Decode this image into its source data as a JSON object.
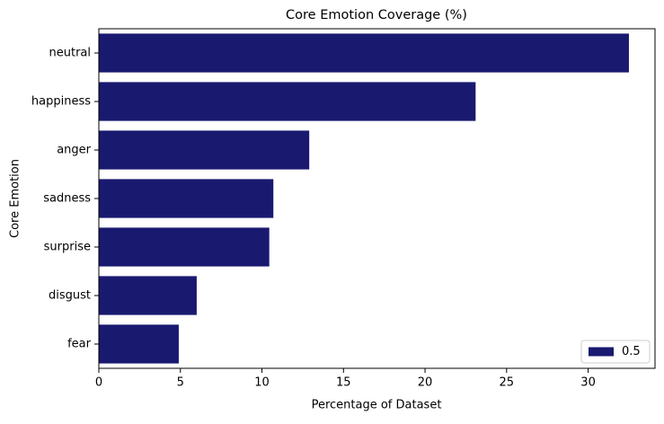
{
  "chart_data": {
    "type": "bar",
    "orientation": "horizontal",
    "title": "Core Emotion Coverage (%)",
    "xlabel": "Percentage of Dataset",
    "ylabel": "Core Emotion",
    "categories": [
      "neutral",
      "happiness",
      "anger",
      "sadness",
      "surprise",
      "disgust",
      "fear"
    ],
    "series": [
      {
        "name": "0.5",
        "color": "#191970",
        "values": [
          32.5,
          23.1,
          12.9,
          10.7,
          10.45,
          6.0,
          4.9
        ]
      }
    ],
    "xlim": [
      0,
      34.1
    ],
    "xticks": [
      0,
      5,
      10,
      15,
      20,
      25,
      30
    ],
    "legend": "lower right"
  }
}
